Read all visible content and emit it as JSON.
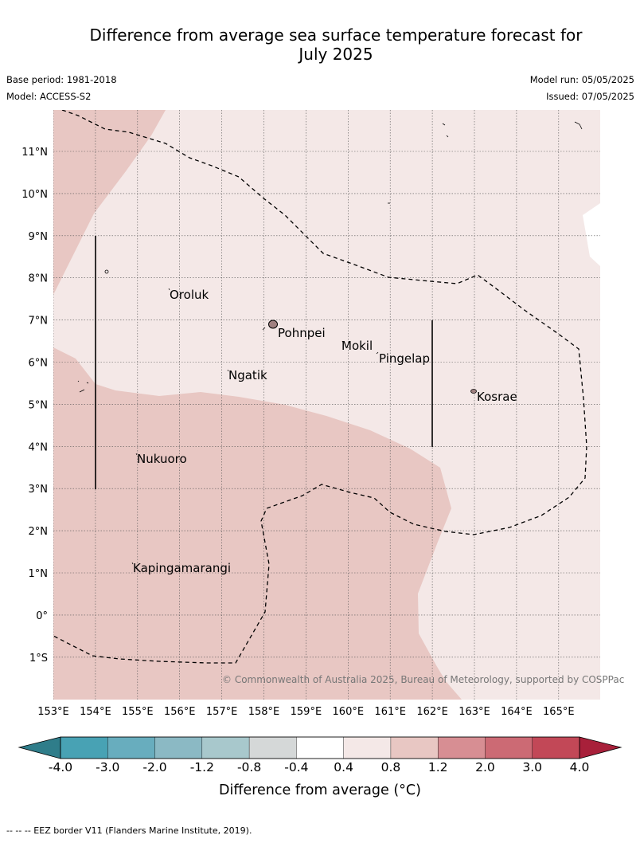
{
  "title": "Difference from average sea surface temperature forecast for July 2025",
  "title_line1": "Difference from average sea surface temperature forecast for",
  "title_line2": "July 2025",
  "base_period": "Base period: 1981-2018",
  "model": "Model: ACCESS-S2",
  "model_run": "Model run: 05/05/2025",
  "issued": "Issued: 07/05/2025",
  "map": {
    "lon_labels": [
      "153°E",
      "154°E",
      "155°E",
      "156°E",
      "157°E",
      "158°E",
      "159°E",
      "160°E",
      "161°E",
      "162°E",
      "163°E",
      "164°E",
      "165°E"
    ],
    "lat_labels": [
      "11°N",
      "10°N",
      "9°N",
      "8°N",
      "7°N",
      "6°N",
      "5°N",
      "4°N",
      "3°N",
      "2°N",
      "1°N",
      "0°",
      "1°S"
    ],
    "places": [
      {
        "name": "Oroluk",
        "lon": 155.8,
        "lat": 7.6
      },
      {
        "name": "Pohnpei",
        "lon": 158.25,
        "lat": 6.9
      },
      {
        "name": "Mokil",
        "lon": 159.8,
        "lat": 6.65
      },
      {
        "name": "Pingelap",
        "lon": 160.7,
        "lat": 6.2
      },
      {
        "name": "Ngatik",
        "lon": 157.15,
        "lat": 5.8
      },
      {
        "name": "Kosrae",
        "lon": 163.0,
        "lat": 5.3
      },
      {
        "name": "Nukuoro",
        "lon": 154.95,
        "lat": 3.85
      },
      {
        "name": "Kapingamarangi",
        "lon": 154.8,
        "lat": 1.1
      }
    ],
    "copyright": "© Commonwealth of Australia 2025, Bureau of Meteorology, supported by COSPPac",
    "colors": {
      "range_0_4_0_8": "#f4e8e7",
      "range_0_8_1_2": "#e8c7c3",
      "range_minus0_4_0_4": "#ffffff",
      "grid": "#555555"
    }
  },
  "colorbar": {
    "ticks": [
      "-4.0",
      "-3.0",
      "-2.0",
      "-1.2",
      "-0.8",
      "-0.4",
      "0.4",
      "0.8",
      "1.2",
      "2.0",
      "3.0",
      "4.0"
    ],
    "colors": [
      "#48a2b4",
      "#68adbe",
      "#8bb9c4",
      "#a8c8cc",
      "#d5d8d8",
      "#ffffff",
      "#f4e8e7",
      "#e8c7c3",
      "#d78e93",
      "#cc6a74",
      "#c24857"
    ],
    "under_color": "#2f7d8a",
    "over_color": "#a8203a",
    "title": "Difference from average (°C)"
  },
  "footnote": "--  --  -- EEZ border V11 (Flanders Marine Institute, 2019)."
}
